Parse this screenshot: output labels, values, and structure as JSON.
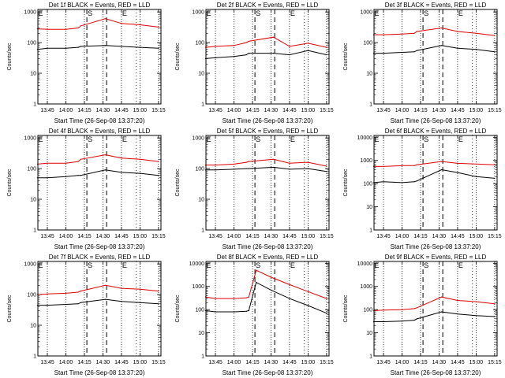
{
  "colors": {
    "events": "#000000",
    "lld": "#e00000",
    "axes": "#000000"
  },
  "chart_data": [
    {
      "type": "line",
      "title": "Det 1f BLACK = Events, RED = LLD",
      "xlabel": "Start Time (26-Sep-08 13:37:20)",
      "ylabel": "Counts/sec",
      "yscale": "log",
      "ylim": [
        1,
        1200
      ],
      "x_ticks": [
        "13:45",
        "14:00",
        "14:15",
        "14:30",
        "14:45",
        "15:00",
        "15:15"
      ],
      "y_ticks": [
        "1",
        "10",
        "100",
        "1000"
      ],
      "markers": [
        {
          "label": "E",
          "x": "13:37"
        },
        {
          "label": "S",
          "x": "14:17"
        },
        {
          "label": "E",
          "x": "14:45"
        }
      ],
      "series": [
        {
          "name": "Events",
          "x": [
            "13:37",
            "13:45",
            "14:00",
            "14:10",
            "14:12",
            "14:32",
            "14:45",
            "15:00",
            "15:15"
          ],
          "y": [
            60,
            65,
            65,
            70,
            75,
            80,
            75,
            70,
            65
          ]
        },
        {
          "name": "LLD",
          "x": [
            "13:37",
            "13:45",
            "14:00",
            "14:10",
            "14:12",
            "14:32",
            "14:45",
            "15:00",
            "15:15"
          ],
          "y": [
            280,
            270,
            270,
            300,
            350,
            600,
            420,
            380,
            320
          ]
        }
      ]
    },
    {
      "type": "line",
      "title": "Det 2f BLACK = Events, RED = LLD",
      "xlabel": "Start Time (26-Sep-08 13:37:20)",
      "ylabel": "Counts/sec",
      "yscale": "log",
      "ylim": [
        1,
        1200
      ],
      "x_ticks": [
        "13:45",
        "14:00",
        "14:15",
        "14:30",
        "14:45",
        "15:00",
        "15:15"
      ],
      "y_ticks": [
        "1",
        "10",
        "100",
        "1000"
      ],
      "markers": [
        {
          "label": "E",
          "x": "13:37"
        },
        {
          "label": "S",
          "x": "14:17"
        },
        {
          "label": "E",
          "x": "14:45"
        }
      ],
      "series": [
        {
          "name": "Events",
          "x": [
            "13:37",
            "13:45",
            "14:00",
            "14:10",
            "14:12",
            "14:32",
            "14:45",
            "15:00",
            "15:15"
          ],
          "y": [
            30,
            32,
            35,
            40,
            45,
            45,
            40,
            55,
            40
          ]
        },
        {
          "name": "LLD",
          "x": [
            "13:37",
            "13:45",
            "14:00",
            "14:10",
            "14:12",
            "14:32",
            "14:45",
            "15:00",
            "15:15"
          ],
          "y": [
            70,
            75,
            80,
            100,
            110,
            150,
            75,
            95,
            70
          ]
        }
      ]
    },
    {
      "type": "line",
      "title": "Det 3f BLACK = Events, RED = LLD",
      "xlabel": "Start Time (26-Sep-08 13:37:20)",
      "ylabel": "Counts/sec",
      "yscale": "log",
      "ylim": [
        1,
        1200
      ],
      "x_ticks": [
        "13:45",
        "14:00",
        "14:15",
        "14:30",
        "14:45",
        "15:00",
        "15:15"
      ],
      "y_ticks": [
        "1",
        "10",
        "100",
        "1000"
      ],
      "markers": [
        {
          "label": "E",
          "x": "13:37"
        },
        {
          "label": "S",
          "x": "14:17"
        },
        {
          "label": "E",
          "x": "14:45"
        }
      ],
      "series": [
        {
          "name": "Events",
          "x": [
            "13:37",
            "13:45",
            "14:00",
            "14:10",
            "14:12",
            "14:32",
            "14:45",
            "15:00",
            "15:15"
          ],
          "y": [
            45,
            45,
            48,
            50,
            55,
            80,
            65,
            60,
            50
          ]
        },
        {
          "name": "LLD",
          "x": [
            "13:37",
            "13:45",
            "14:00",
            "14:10",
            "14:12",
            "14:32",
            "14:45",
            "15:00",
            "15:15"
          ],
          "y": [
            180,
            180,
            190,
            200,
            230,
            300,
            230,
            200,
            170
          ]
        }
      ]
    },
    {
      "type": "line",
      "title": "Det 4f BLACK = Events, RED = LLD",
      "xlabel": "Start Time (26-Sep-08 13:37:20)",
      "ylabel": "Counts/sec",
      "yscale": "log",
      "ylim": [
        1,
        1200
      ],
      "x_ticks": [
        "13:45",
        "14:00",
        "14:15",
        "14:30",
        "14:45",
        "15:00",
        "15:15"
      ],
      "y_ticks": [
        "1",
        "10",
        "100",
        "1000"
      ],
      "markers": [
        {
          "label": "E",
          "x": "13:37"
        },
        {
          "label": "S",
          "x": "14:17"
        },
        {
          "label": "E",
          "x": "14:45"
        }
      ],
      "series": [
        {
          "name": "Events",
          "x": [
            "13:37",
            "13:45",
            "14:00",
            "14:10",
            "14:12",
            "14:32",
            "14:45",
            "15:00",
            "15:15"
          ],
          "y": [
            50,
            50,
            55,
            60,
            60,
            90,
            75,
            70,
            60
          ]
        },
        {
          "name": "LLD",
          "x": [
            "13:37",
            "13:45",
            "14:00",
            "14:10",
            "14:12",
            "14:32",
            "14:45",
            "15:00",
            "15:15"
          ],
          "y": [
            140,
            150,
            150,
            170,
            200,
            280,
            220,
            200,
            170
          ]
        }
      ]
    },
    {
      "type": "line",
      "title": "Det 5f BLACK = Events, RED = LLD",
      "xlabel": "Start Time (26-Sep-08 13:37:20)",
      "ylabel": "Counts/sec",
      "yscale": "log",
      "ylim": [
        1,
        1200
      ],
      "x_ticks": [
        "13:45",
        "14:00",
        "14:15",
        "14:30",
        "14:45",
        "15:00",
        "15:15"
      ],
      "y_ticks": [
        "1",
        "10",
        "100",
        "1000"
      ],
      "markers": [
        {
          "label": "E",
          "x": "13:37"
        },
        {
          "label": "S",
          "x": "14:17"
        },
        {
          "label": "E",
          "x": "14:45"
        }
      ],
      "series": [
        {
          "name": "Events",
          "x": [
            "13:37",
            "13:45",
            "14:00",
            "14:10",
            "14:12",
            "14:32",
            "14:45",
            "15:00",
            "15:15"
          ],
          "y": [
            90,
            90,
            95,
            100,
            100,
            110,
            95,
            100,
            80
          ]
        },
        {
          "name": "LLD",
          "x": [
            "13:37",
            "13:45",
            "14:00",
            "14:10",
            "14:12",
            "14:32",
            "14:45",
            "15:00",
            "15:15"
          ],
          "y": [
            130,
            130,
            140,
            160,
            170,
            200,
            150,
            160,
            120
          ]
        }
      ]
    },
    {
      "type": "line",
      "title": "Det 6f BLACK = Events, RED = LLD",
      "xlabel": "Start Time (26-Sep-08 13:37:20)",
      "ylabel": "Counts/sec",
      "yscale": "log",
      "ylim": [
        1,
        12000
      ],
      "x_ticks": [
        "13:45",
        "14:00",
        "14:15",
        "14:30",
        "14:45",
        "15:00",
        "15:15"
      ],
      "y_ticks": [
        "1",
        "10",
        "100",
        "1000",
        "10000"
      ],
      "markers": [
        {
          "label": "E",
          "x": "13:37"
        },
        {
          "label": "S",
          "x": "14:17"
        },
        {
          "label": "E",
          "x": "14:45"
        }
      ],
      "series": [
        {
          "name": "Events",
          "x": [
            "13:37",
            "13:45",
            "14:00",
            "14:10",
            "14:12",
            "14:32",
            "14:45",
            "15:00",
            "15:15"
          ],
          "y": [
            110,
            120,
            110,
            120,
            130,
            400,
            300,
            200,
            170
          ]
        },
        {
          "name": "LLD",
          "x": [
            "13:37",
            "13:45",
            "14:00",
            "14:10",
            "14:12",
            "14:32",
            "14:45",
            "15:00",
            "15:15"
          ],
          "y": [
            550,
            550,
            600,
            600,
            650,
            900,
            750,
            700,
            650
          ]
        }
      ]
    },
    {
      "type": "line",
      "title": "Det 7f BLACK = Events, RED = LLD",
      "xlabel": "Start Time (26-Sep-08 13:37:20)",
      "ylabel": "Counts/sec",
      "yscale": "log",
      "ylim": [
        1,
        1200
      ],
      "x_ticks": [
        "13:45",
        "14:00",
        "14:15",
        "14:30",
        "14:45",
        "15:00",
        "15:15"
      ],
      "y_ticks": [
        "1",
        "10",
        "100",
        "1000"
      ],
      "markers": [
        {
          "label": "E",
          "x": "13:37"
        },
        {
          "label": "S",
          "x": "14:17"
        },
        {
          "label": "E",
          "x": "14:45"
        }
      ],
      "series": [
        {
          "name": "Events",
          "x": [
            "13:37",
            "13:45",
            "14:00",
            "14:10",
            "14:12",
            "14:32",
            "14:45",
            "15:00",
            "15:15"
          ],
          "y": [
            45,
            45,
            48,
            50,
            55,
            70,
            60,
            55,
            50
          ]
        },
        {
          "name": "LLD",
          "x": [
            "13:37",
            "13:45",
            "14:00",
            "14:10",
            "14:12",
            "14:32",
            "14:45",
            "15:00",
            "15:15"
          ],
          "y": [
            100,
            105,
            110,
            120,
            130,
            200,
            160,
            150,
            130
          ]
        }
      ]
    },
    {
      "type": "line",
      "title": "Det 8f BLACK = Events, RED = LLD",
      "xlabel": "Start Time (26-Sep-08 13:37:20)",
      "ylabel": "Counts/sec",
      "yscale": "log",
      "ylim": [
        1,
        12000
      ],
      "x_ticks": [
        "13:45",
        "14:00",
        "14:15",
        "14:30",
        "14:45",
        "15:00",
        "15:15"
      ],
      "y_ticks": [
        "1",
        "10",
        "100",
        "1000",
        "10000"
      ],
      "markers": [
        {
          "label": "E",
          "x": "13:37"
        },
        {
          "label": "S",
          "x": "14:17"
        },
        {
          "label": "E",
          "x": "14:45"
        }
      ],
      "series": [
        {
          "name": "Events",
          "x": [
            "13:37",
            "13:45",
            "14:00",
            "14:10",
            "14:12",
            "14:18",
            "14:30",
            "14:45",
            "15:00",
            "15:15"
          ],
          "y": [
            90,
            80,
            80,
            85,
            90,
            1500,
            700,
            300,
            150,
            70
          ]
        },
        {
          "name": "LLD",
          "x": [
            "13:37",
            "13:45",
            "14:00",
            "14:10",
            "14:12",
            "14:18",
            "14:30",
            "14:45",
            "15:00",
            "15:15"
          ],
          "y": [
            350,
            300,
            300,
            320,
            350,
            5000,
            2500,
            1200,
            600,
            300
          ]
        }
      ]
    },
    {
      "type": "line",
      "title": "Det 9f BLACK = Events, RED = LLD",
      "xlabel": "Start Time (26-Sep-08 13:37:20)",
      "ylabel": "Counts/sec",
      "yscale": "log",
      "ylim": [
        1,
        12000
      ],
      "x_ticks": [
        "13:45",
        "14:00",
        "14:15",
        "14:30",
        "14:45",
        "15:00",
        "15:15"
      ],
      "y_ticks": [
        "1",
        "10",
        "100",
        "1000",
        "10000"
      ],
      "markers": [
        {
          "label": "E",
          "x": "13:37"
        },
        {
          "label": "S",
          "x": "14:17"
        },
        {
          "label": "E",
          "x": "14:45"
        }
      ],
      "series": [
        {
          "name": "Events",
          "x": [
            "13:37",
            "13:45",
            "14:00",
            "14:10",
            "14:12",
            "14:32",
            "14:45",
            "15:00",
            "15:15"
          ],
          "y": [
            30,
            30,
            32,
            35,
            40,
            80,
            65,
            55,
            50
          ]
        },
        {
          "name": "LLD",
          "x": [
            "13:37",
            "13:45",
            "14:00",
            "14:10",
            "14:12",
            "14:32",
            "14:45",
            "15:00",
            "15:15"
          ],
          "y": [
            90,
            95,
            100,
            110,
            120,
            350,
            250,
            220,
            180
          ]
        }
      ]
    }
  ]
}
